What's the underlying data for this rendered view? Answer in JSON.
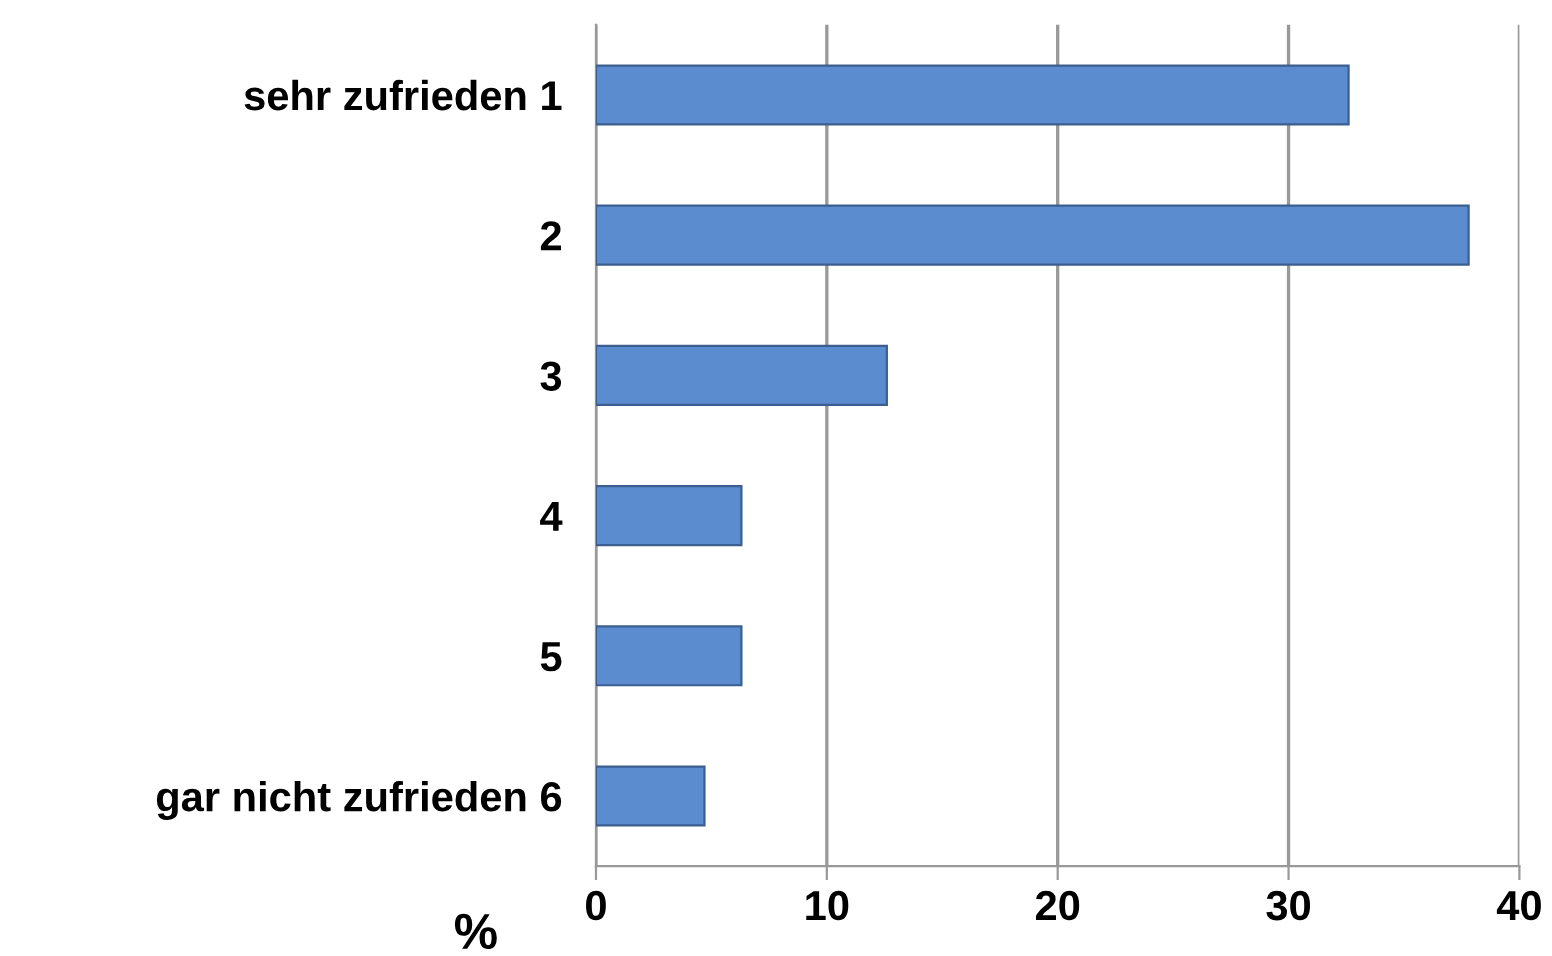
{
  "chart_data": {
    "type": "bar",
    "orientation": "horizontal",
    "xlabel": "%",
    "categories": [
      "sehr zufrieden 1",
      "2",
      "3",
      "4",
      "5",
      "gar nicht zufrieden 6"
    ],
    "values": [
      32.6,
      37.8,
      12.6,
      6.3,
      6.3,
      4.7
    ],
    "color": "#5b8ccf",
    "xlim": [
      0,
      40
    ],
    "xticks": [
      0,
      10,
      20,
      30,
      40
    ],
    "grid": "x",
    "legend": false
  }
}
